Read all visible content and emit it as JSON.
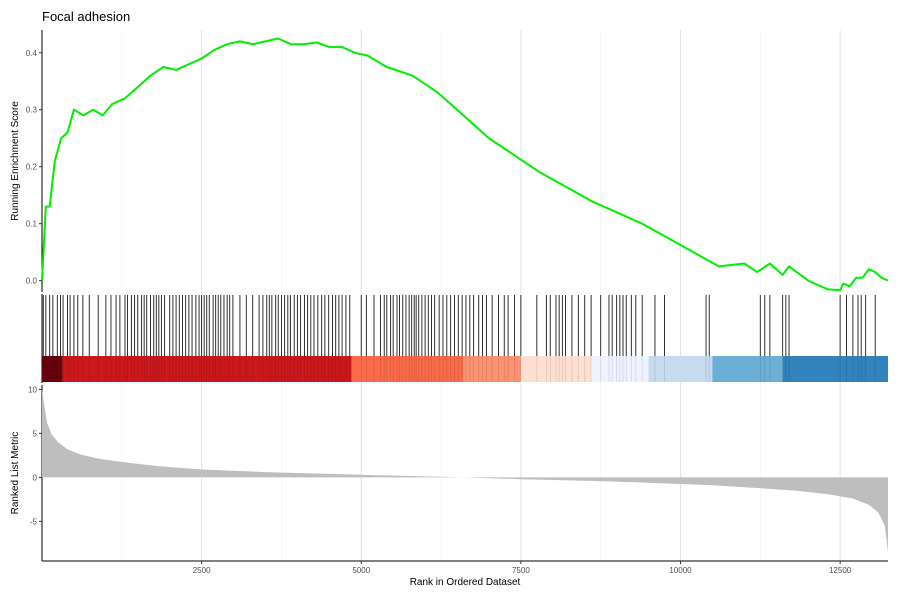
{
  "chart_data": {
    "title": "Focal adhesion",
    "x_axis": {
      "label": "Rank in Ordered Dataset",
      "range": [
        0,
        13250
      ],
      "ticks": [
        2500,
        5000,
        7500,
        10000,
        12500
      ],
      "tick_labels": [
        "2500",
        "5000",
        "7500",
        "10000",
        "12500"
      ]
    },
    "panels": [
      {
        "type": "line",
        "ylabel": "Running Enrichment Score",
        "ylim": [
          -0.02,
          0.44
        ],
        "yticks": [
          0.0,
          0.1,
          0.2,
          0.3,
          0.4
        ],
        "ytick_labels": [
          "0.0",
          "0.1",
          "0.2",
          "0.3",
          "0.4"
        ],
        "line_color": "#00ee00",
        "series": [
          {
            "x": [
              0,
              60,
              120,
              200,
              300,
              400,
              500,
              650,
              800,
              950,
              1100,
              1300,
              1500,
              1700,
              1900,
              2100,
              2300,
              2500,
              2700,
              2900,
              3100,
              3300,
              3500,
              3700,
              3900,
              4100,
              4300,
              4500,
              4700,
              4900,
              5100,
              5400,
              5800,
              6200,
              6600,
              7000,
              7400,
              7800,
              8200,
              8600,
              9000,
              9400,
              9800,
              10200,
              10600,
              11000,
              11200,
              11400,
              11600,
              11700,
              12000,
              12300,
              12500,
              12550,
              12650,
              12750,
              12850,
              12950,
              13050,
              13150,
              13250
            ],
            "y": [
              0.0,
              0.13,
              0.13,
              0.21,
              0.25,
              0.26,
              0.3,
              0.29,
              0.3,
              0.29,
              0.31,
              0.32,
              0.34,
              0.36,
              0.375,
              0.37,
              0.38,
              0.39,
              0.405,
              0.415,
              0.42,
              0.415,
              0.42,
              0.425,
              0.415,
              0.415,
              0.418,
              0.41,
              0.41,
              0.4,
              0.395,
              0.375,
              0.36,
              0.33,
              0.29,
              0.25,
              0.22,
              0.19,
              0.165,
              0.14,
              0.12,
              0.1,
              0.075,
              0.05,
              0.025,
              0.03,
              0.015,
              0.03,
              0.01,
              0.025,
              0.0,
              -0.015,
              -0.017,
              -0.005,
              -0.01,
              0.005,
              0.005,
              0.02,
              0.015,
              0.005,
              0.0
            ]
          }
        ]
      },
      {
        "type": "rug",
        "description_colors": [
          "#67000d",
          "#cb181d",
          "#ef3b2c",
          "#fb6a4a",
          "#fc9272",
          "#fcbba1",
          "#fee0d2",
          "#eff3ff",
          "#c6dbef",
          "#6baed6",
          "#3182bd"
        ],
        "hits": [
          20,
          60,
          120,
          170,
          240,
          290,
          330,
          400,
          440,
          500,
          560,
          640,
          740,
          880,
          1000,
          1080,
          1160,
          1220,
          1300,
          1340,
          1400,
          1450,
          1500,
          1560,
          1600,
          1640,
          1700,
          1750,
          1790,
          1830,
          1870,
          1920,
          2000,
          2050,
          2100,
          2150,
          2200,
          2250,
          2300,
          2350,
          2410,
          2460,
          2500,
          2540,
          2580,
          2620,
          2680,
          2720,
          2760,
          2800,
          2850,
          2900,
          2940,
          2990,
          3100,
          3200,
          3300,
          3400,
          3460,
          3520,
          3560,
          3600,
          3660,
          3700,
          3750,
          3800,
          3850,
          3890,
          3950,
          4000,
          4050,
          4110,
          4160,
          4210,
          4260,
          4320,
          4380,
          4430,
          4490,
          4550,
          4600,
          4650,
          4700,
          4760,
          4820,
          5000,
          5080,
          5200,
          5300,
          5360,
          5400,
          5460,
          5500,
          5560,
          5600,
          5650,
          5700,
          5750,
          5790,
          5830,
          5860,
          5900,
          5950,
          6000,
          6050,
          6100,
          6150,
          6220,
          6280,
          6340,
          6400,
          6460,
          6520,
          6580,
          6640,
          6700,
          6760,
          6840,
          6900,
          6960,
          7050,
          7150,
          7240,
          7300,
          7400,
          7500,
          7750,
          7900,
          7960,
          8050,
          8100,
          8150,
          8200,
          8300,
          8400,
          8500,
          8600,
          8750,
          8880,
          8930,
          9000,
          9050,
          9100,
          9150,
          9230,
          9300,
          9400,
          9600,
          9750,
          10400,
          10450,
          11250,
          11320,
          11400,
          11600,
          11650,
          11700,
          12500,
          12600,
          12700,
          12780,
          12830,
          12900,
          13050
        ]
      },
      {
        "type": "area",
        "ylabel": "Ranked List Metric",
        "ylim": [
          -9.5,
          10.5
        ],
        "yticks": [
          10,
          5,
          0,
          -5
        ],
        "ytick_labels": [
          "10",
          "5",
          "0",
          "-5"
        ],
        "fill_color": "#bebebe",
        "series": [
          {
            "x": [
              0,
              30,
              80,
              150,
              250,
              400,
              600,
              900,
              1300,
              1800,
              2500,
              3500,
              5000,
              6600,
              7500,
              8600,
              9500,
              10500,
              11200,
              11800,
              12300,
              12700,
              12950,
              13100,
              13200,
              13250
            ],
            "y": [
              10.0,
              8.5,
              6.2,
              4.9,
              4.0,
              3.2,
              2.6,
              2.1,
              1.7,
              1.3,
              0.9,
              0.6,
              0.3,
              0.0,
              -0.2,
              -0.4,
              -0.6,
              -0.9,
              -1.2,
              -1.5,
              -1.9,
              -2.4,
              -3.1,
              -4.0,
              -5.5,
              -8.5
            ]
          }
        ]
      }
    ]
  }
}
